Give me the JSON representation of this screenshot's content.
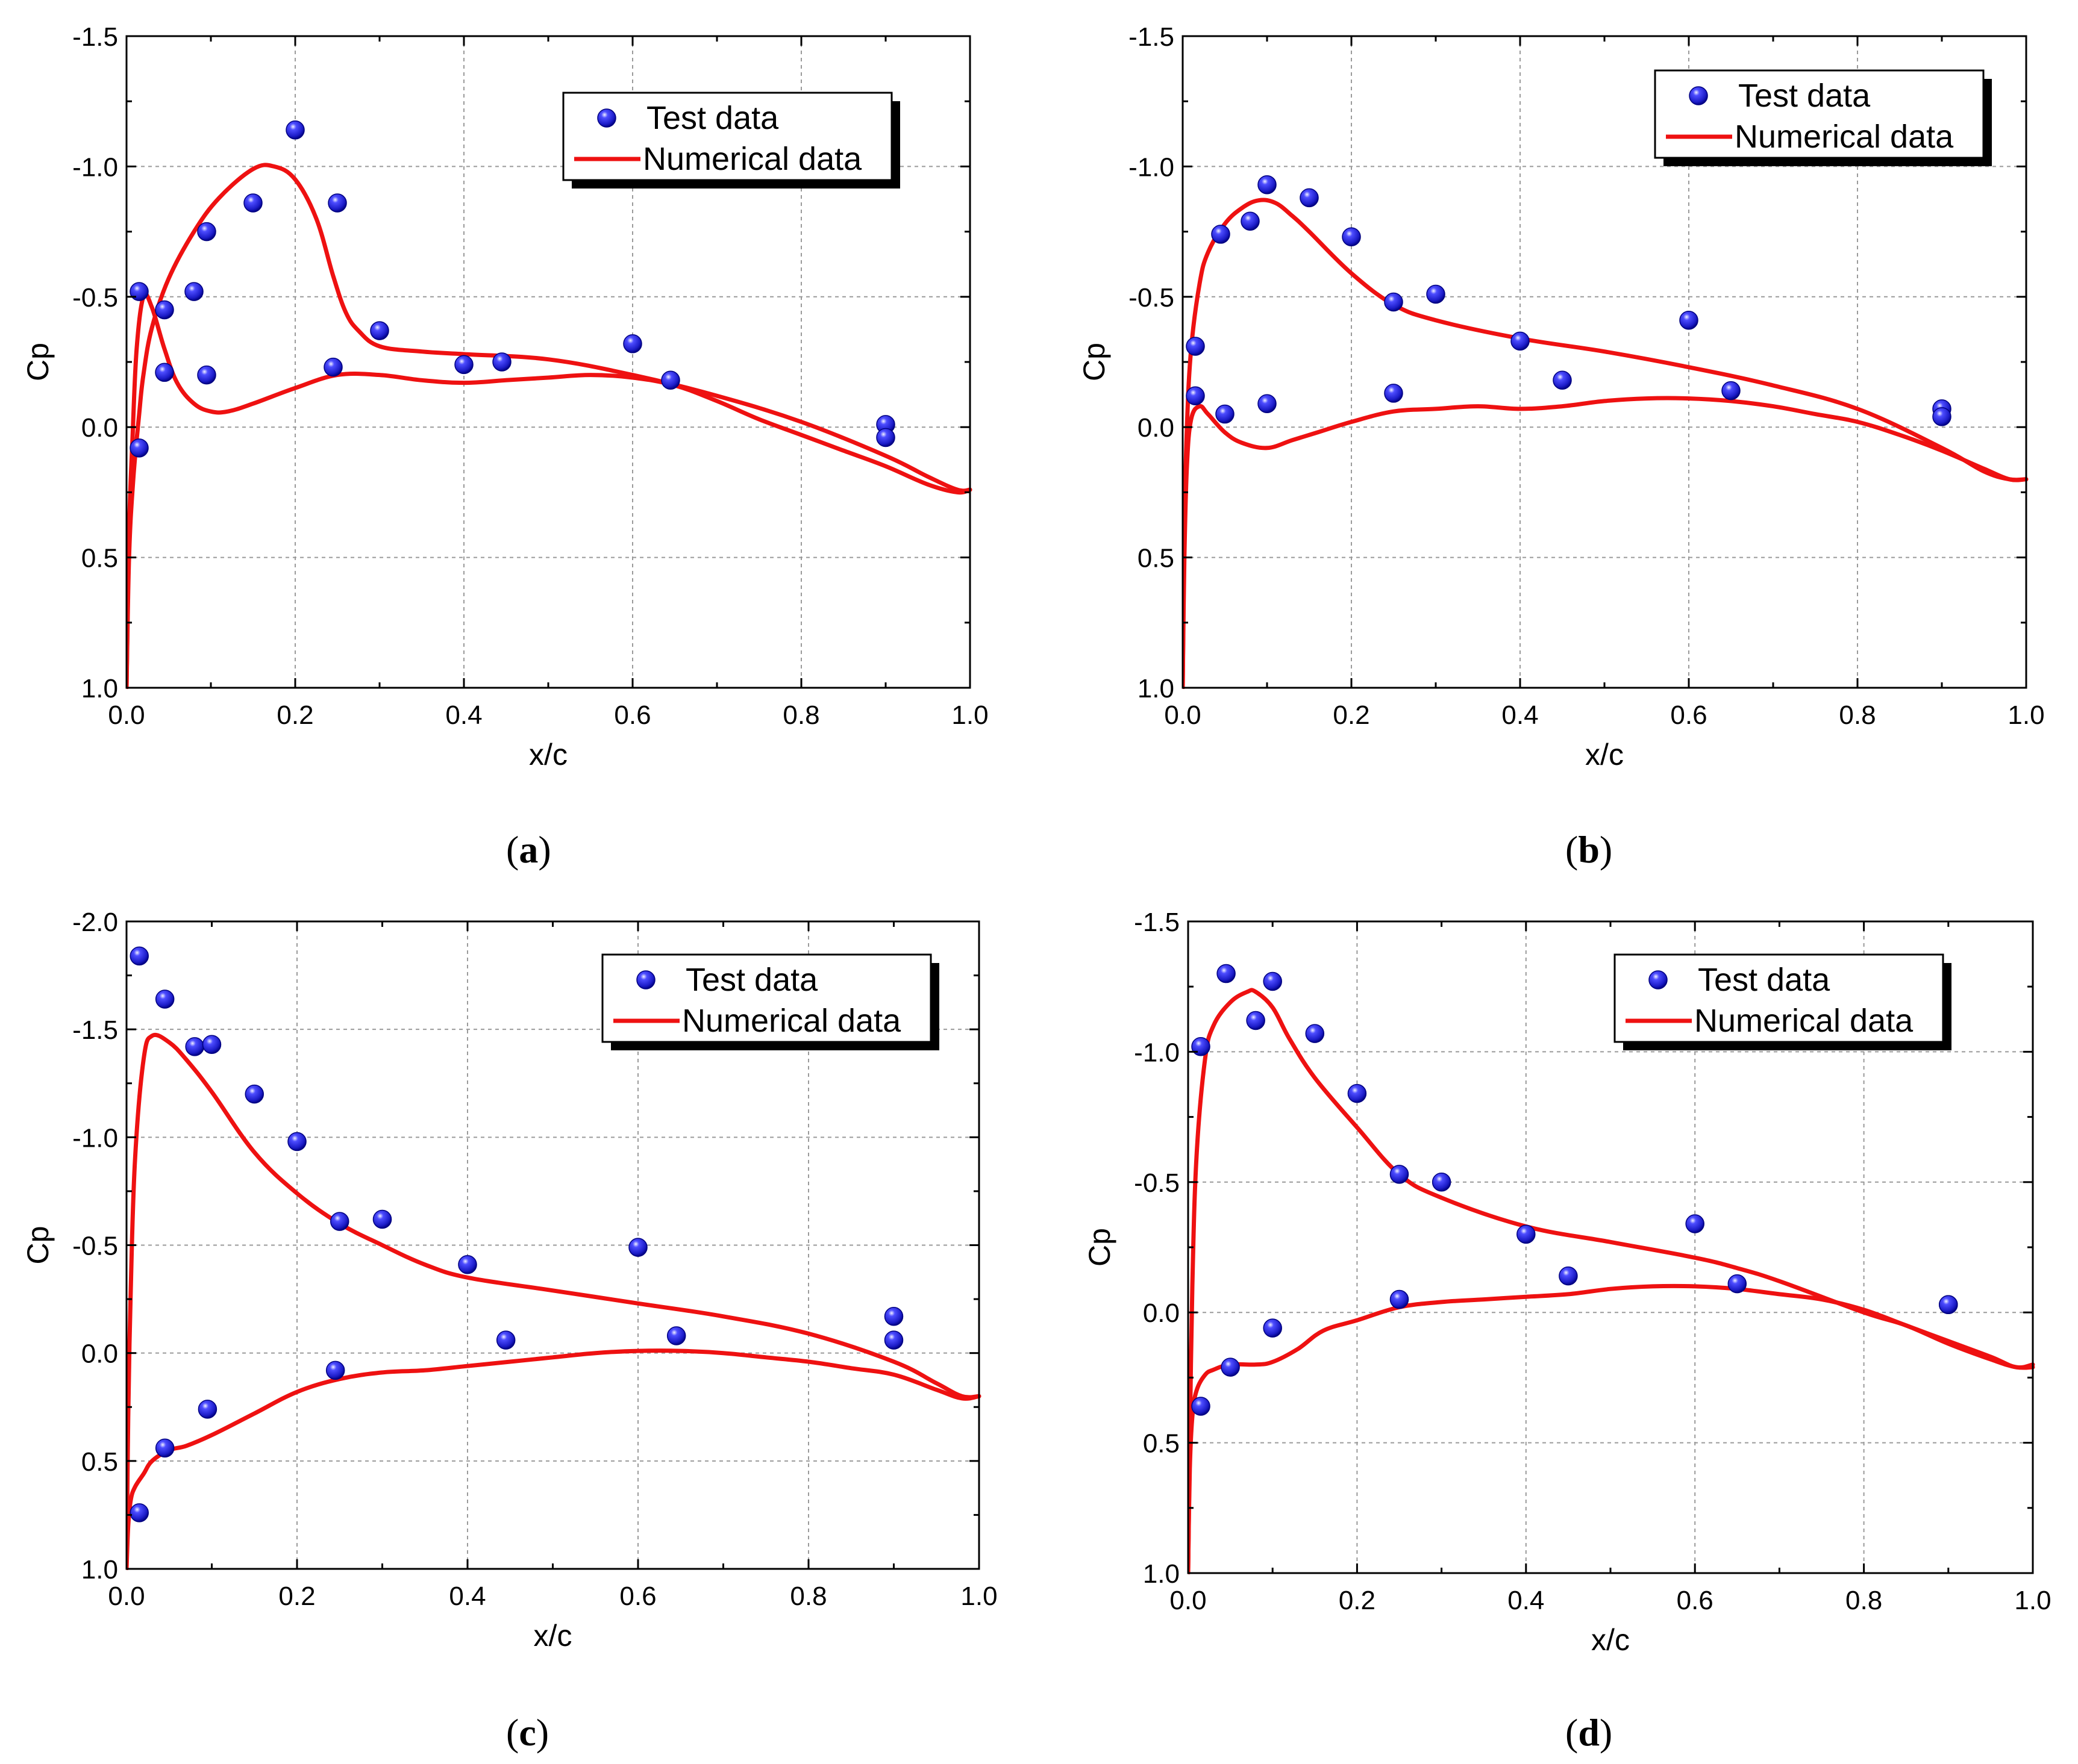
{
  "figure": {
    "panels": [
      "a",
      "b",
      "c",
      "d"
    ]
  },
  "colors": {
    "numerical": "#ee1111",
    "test_fill": "#2a2ae8",
    "test_dark": "#000080",
    "grid": "#9a9a9a"
  },
  "chart_data": [
    {
      "panel_label": "a",
      "type": "scatter+line",
      "xlabel": "x/c",
      "ylabel": "Cp",
      "xlim": [
        0,
        1
      ],
      "ylim": [
        1.0,
        -1.5
      ],
      "xticks": [
        "0.0",
        "0.2",
        "0.4",
        "0.6",
        "0.8",
        "1.0"
      ],
      "yticks": [
        "-1.5",
        "-1.0",
        "-0.5",
        "0.0",
        "0.5",
        "1.0"
      ],
      "legend": {
        "position": "top-right",
        "test_label": "Test data",
        "numerical_label": "Numerical data"
      },
      "test_data": {
        "x": [
          0.015,
          0.015,
          0.045,
          0.045,
          0.08,
          0.095,
          0.095,
          0.15,
          0.2,
          0.245,
          0.25,
          0.3,
          0.4,
          0.445,
          0.6,
          0.645,
          0.9,
          0.9
        ],
        "y": [
          -0.52,
          0.08,
          -0.45,
          -0.21,
          -0.52,
          -0.75,
          -0.2,
          -0.86,
          -1.14,
          -0.23,
          -0.86,
          -0.37,
          -0.24,
          -0.25,
          -0.32,
          -0.18,
          -0.01,
          0.04
        ]
      },
      "numerical_upper": {
        "x": [
          0.0,
          0.003,
          0.008,
          0.015,
          0.02,
          0.03,
          0.05,
          0.08,
          0.11,
          0.15,
          0.175,
          0.2,
          0.225,
          0.245,
          0.26,
          0.275,
          0.3,
          0.35,
          0.4,
          0.5,
          0.6,
          0.7,
          0.8,
          0.9,
          0.95,
          0.985,
          1.0
        ],
        "y": [
          1.0,
          0.5,
          0.2,
          -0.05,
          -0.2,
          -0.38,
          -0.57,
          -0.75,
          -0.88,
          -0.99,
          -1.0,
          -0.95,
          -0.8,
          -0.58,
          -0.44,
          -0.37,
          -0.31,
          -0.29,
          -0.28,
          -0.26,
          -0.2,
          -0.12,
          -0.02,
          0.11,
          0.19,
          0.24,
          0.24
        ]
      },
      "numerical_lower": {
        "x": [
          0.0,
          0.003,
          0.007,
          0.012,
          0.02,
          0.03,
          0.045,
          0.06,
          0.08,
          0.1,
          0.12,
          0.15,
          0.2,
          0.25,
          0.3,
          0.35,
          0.4,
          0.45,
          0.5,
          0.55,
          0.6,
          0.65,
          0.7,
          0.75,
          0.8,
          0.85,
          0.9,
          0.95,
          0.985,
          1.0
        ],
        "y": [
          1.0,
          0.4,
          0.05,
          -0.3,
          -0.5,
          -0.46,
          -0.3,
          -0.17,
          -0.09,
          -0.06,
          -0.06,
          -0.09,
          -0.15,
          -0.2,
          -0.2,
          -0.18,
          -0.17,
          -0.18,
          -0.19,
          -0.2,
          -0.19,
          -0.16,
          -0.1,
          -0.03,
          0.03,
          0.09,
          0.15,
          0.22,
          0.25,
          0.24
        ]
      }
    },
    {
      "panel_label": "b",
      "type": "scatter+line",
      "xlabel": "x/c",
      "ylabel": "Cp",
      "xlim": [
        0,
        1
      ],
      "ylim": [
        1.0,
        -1.5
      ],
      "xticks": [
        "0.0",
        "0.2",
        "0.4",
        "0.6",
        "0.8",
        "1.0"
      ],
      "yticks": [
        "-1.5",
        "-1.0",
        "-0.5",
        "0.0",
        "0.5",
        "1.0"
      ],
      "legend": {
        "position": "top-right",
        "test_label": "Test data",
        "numerical_label": "Numerical data"
      },
      "test_data": {
        "x": [
          0.015,
          0.015,
          0.045,
          0.05,
          0.08,
          0.1,
          0.1,
          0.15,
          0.2,
          0.25,
          0.25,
          0.3,
          0.4,
          0.45,
          0.6,
          0.65,
          0.9,
          0.9
        ],
        "y": [
          -0.31,
          -0.12,
          -0.74,
          -0.05,
          -0.79,
          -0.93,
          -0.09,
          -0.88,
          -0.73,
          -0.48,
          -0.13,
          -0.51,
          -0.33,
          -0.18,
          -0.41,
          -0.14,
          -0.07,
          -0.04
        ]
      },
      "numerical_upper": {
        "x": [
          0.0,
          0.002,
          0.005,
          0.01,
          0.02,
          0.03,
          0.05,
          0.07,
          0.09,
          0.11,
          0.13,
          0.15,
          0.2,
          0.25,
          0.3,
          0.4,
          0.5,
          0.6,
          0.7,
          0.8,
          0.9,
          0.95,
          0.98,
          1.0
        ],
        "y": [
          1.0,
          0.4,
          0.0,
          -0.3,
          -0.55,
          -0.67,
          -0.78,
          -0.84,
          -0.87,
          -0.86,
          -0.81,
          -0.75,
          -0.59,
          -0.47,
          -0.41,
          -0.34,
          -0.29,
          -0.23,
          -0.16,
          -0.07,
          0.08,
          0.17,
          0.2,
          0.2
        ]
      },
      "numerical_lower": {
        "x": [
          0.0,
          0.002,
          0.005,
          0.01,
          0.02,
          0.03,
          0.05,
          0.07,
          0.1,
          0.13,
          0.16,
          0.2,
          0.25,
          0.3,
          0.35,
          0.4,
          0.45,
          0.5,
          0.55,
          0.6,
          0.65,
          0.7,
          0.75,
          0.8,
          0.85,
          0.9,
          0.95,
          0.98,
          1.0
        ],
        "y": [
          1.0,
          0.5,
          0.15,
          -0.03,
          -0.08,
          -0.05,
          0.02,
          0.06,
          0.08,
          0.05,
          0.02,
          -0.02,
          -0.06,
          -0.07,
          -0.08,
          -0.07,
          -0.08,
          -0.1,
          -0.11,
          -0.11,
          -0.1,
          -0.08,
          -0.05,
          -0.02,
          0.03,
          0.09,
          0.16,
          0.2,
          0.2
        ]
      }
    },
    {
      "panel_label": "c",
      "type": "scatter+line",
      "xlabel": "x/c",
      "ylabel": "Cp",
      "xlim": [
        0,
        1
      ],
      "ylim": [
        1.0,
        -2.0
      ],
      "xticks": [
        "0.0",
        "0.2",
        "0.4",
        "0.6",
        "0.8",
        "1.0"
      ],
      "yticks": [
        "-2.0",
        "-1.5",
        "-1.0",
        "-0.5",
        "0.0",
        "0.5",
        "1.0"
      ],
      "legend": {
        "position": "top-right",
        "test_label": "Test data",
        "numerical_label": "Numerical data"
      },
      "test_data": {
        "x": [
          0.015,
          0.015,
          0.045,
          0.045,
          0.08,
          0.095,
          0.1,
          0.15,
          0.2,
          0.245,
          0.25,
          0.3,
          0.4,
          0.445,
          0.6,
          0.645,
          0.9,
          0.9
        ],
        "y": [
          -1.84,
          0.74,
          -1.64,
          0.44,
          -1.42,
          0.26,
          -1.43,
          -1.2,
          -0.98,
          0.08,
          -0.61,
          -0.62,
          -0.41,
          -0.06,
          -0.49,
          -0.08,
          -0.17,
          -0.06
        ]
      },
      "numerical_upper": {
        "x": [
          0.0,
          0.002,
          0.005,
          0.01,
          0.02,
          0.03,
          0.05,
          0.07,
          0.1,
          0.15,
          0.2,
          0.25,
          0.3,
          0.35,
          0.4,
          0.5,
          0.6,
          0.7,
          0.8,
          0.9,
          0.95,
          0.98,
          1.0
        ],
        "y": [
          1.0,
          0.3,
          -0.3,
          -0.9,
          -1.36,
          -1.47,
          -1.44,
          -1.36,
          -1.21,
          -0.93,
          -0.74,
          -0.6,
          -0.5,
          -0.41,
          -0.35,
          -0.29,
          -0.23,
          -0.17,
          -0.09,
          0.04,
          0.14,
          0.2,
          0.2
        ]
      },
      "numerical_lower": {
        "x": [
          0.0,
          0.002,
          0.005,
          0.01,
          0.02,
          0.03,
          0.05,
          0.07,
          0.1,
          0.15,
          0.2,
          0.25,
          0.3,
          0.35,
          0.4,
          0.45,
          0.5,
          0.55,
          0.6,
          0.65,
          0.7,
          0.75,
          0.8,
          0.85,
          0.9,
          0.95,
          0.98,
          1.0
        ],
        "y": [
          1.0,
          0.8,
          0.68,
          0.62,
          0.56,
          0.5,
          0.45,
          0.43,
          0.38,
          0.28,
          0.18,
          0.12,
          0.09,
          0.08,
          0.06,
          0.04,
          0.02,
          0.0,
          -0.01,
          -0.01,
          0.0,
          0.02,
          0.04,
          0.07,
          0.1,
          0.17,
          0.21,
          0.2
        ]
      }
    },
    {
      "panel_label": "d",
      "type": "scatter+line",
      "xlabel": "x/c",
      "ylabel": "Cp",
      "xlim": [
        0,
        1
      ],
      "ylim": [
        1.0,
        -1.5
      ],
      "xticks": [
        "0.0",
        "0.2",
        "0.4",
        "0.6",
        "0.8",
        "1.0"
      ],
      "yticks": [
        "-1.5",
        "-1.0",
        "-0.5",
        "0.0",
        "0.5",
        "1.0"
      ],
      "legend": {
        "position": "top-right",
        "test_label": "Test data",
        "numerical_label": "Numerical data"
      },
      "test_data": {
        "x": [
          0.015,
          0.015,
          0.045,
          0.05,
          0.08,
          0.1,
          0.1,
          0.15,
          0.2,
          0.25,
          0.25,
          0.3,
          0.4,
          0.45,
          0.6,
          0.65,
          0.9,
          0.9
        ],
        "y": [
          -1.02,
          0.36,
          -1.3,
          0.21,
          -1.12,
          -1.27,
          0.06,
          -1.07,
          -0.84,
          -0.53,
          -0.05,
          -0.5,
          -0.3,
          -0.14,
          -0.34,
          -0.11,
          -0.03,
          -0.03
        ]
      },
      "numerical_upper": {
        "x": [
          0.0,
          0.002,
          0.005,
          0.01,
          0.02,
          0.03,
          0.05,
          0.07,
          0.08,
          0.1,
          0.12,
          0.15,
          0.2,
          0.25,
          0.3,
          0.4,
          0.5,
          0.6,
          0.65,
          0.7,
          0.8,
          0.85,
          0.9,
          0.95,
          0.98,
          1.0
        ],
        "y": [
          1.0,
          0.5,
          -0.1,
          -0.6,
          -0.97,
          -1.1,
          -1.19,
          -1.23,
          -1.23,
          -1.17,
          -1.05,
          -0.9,
          -0.71,
          -0.53,
          -0.44,
          -0.33,
          -0.27,
          -0.21,
          -0.17,
          -0.12,
          0.0,
          0.05,
          0.12,
          0.18,
          0.21,
          0.21
        ]
      },
      "numerical_lower": {
        "x": [
          0.0,
          0.002,
          0.005,
          0.01,
          0.02,
          0.03,
          0.05,
          0.08,
          0.1,
          0.13,
          0.16,
          0.2,
          0.25,
          0.3,
          0.35,
          0.4,
          0.45,
          0.5,
          0.55,
          0.6,
          0.65,
          0.7,
          0.75,
          0.8,
          0.85,
          0.9,
          0.95,
          0.98,
          1.0
        ],
        "y": [
          1.0,
          0.6,
          0.4,
          0.3,
          0.24,
          0.22,
          0.2,
          0.2,
          0.19,
          0.14,
          0.07,
          0.03,
          -0.02,
          -0.04,
          -0.05,
          -0.06,
          -0.07,
          -0.09,
          -0.1,
          -0.1,
          -0.09,
          -0.07,
          -0.05,
          -0.01,
          0.05,
          0.11,
          0.17,
          0.21,
          0.2
        ]
      }
    }
  ]
}
